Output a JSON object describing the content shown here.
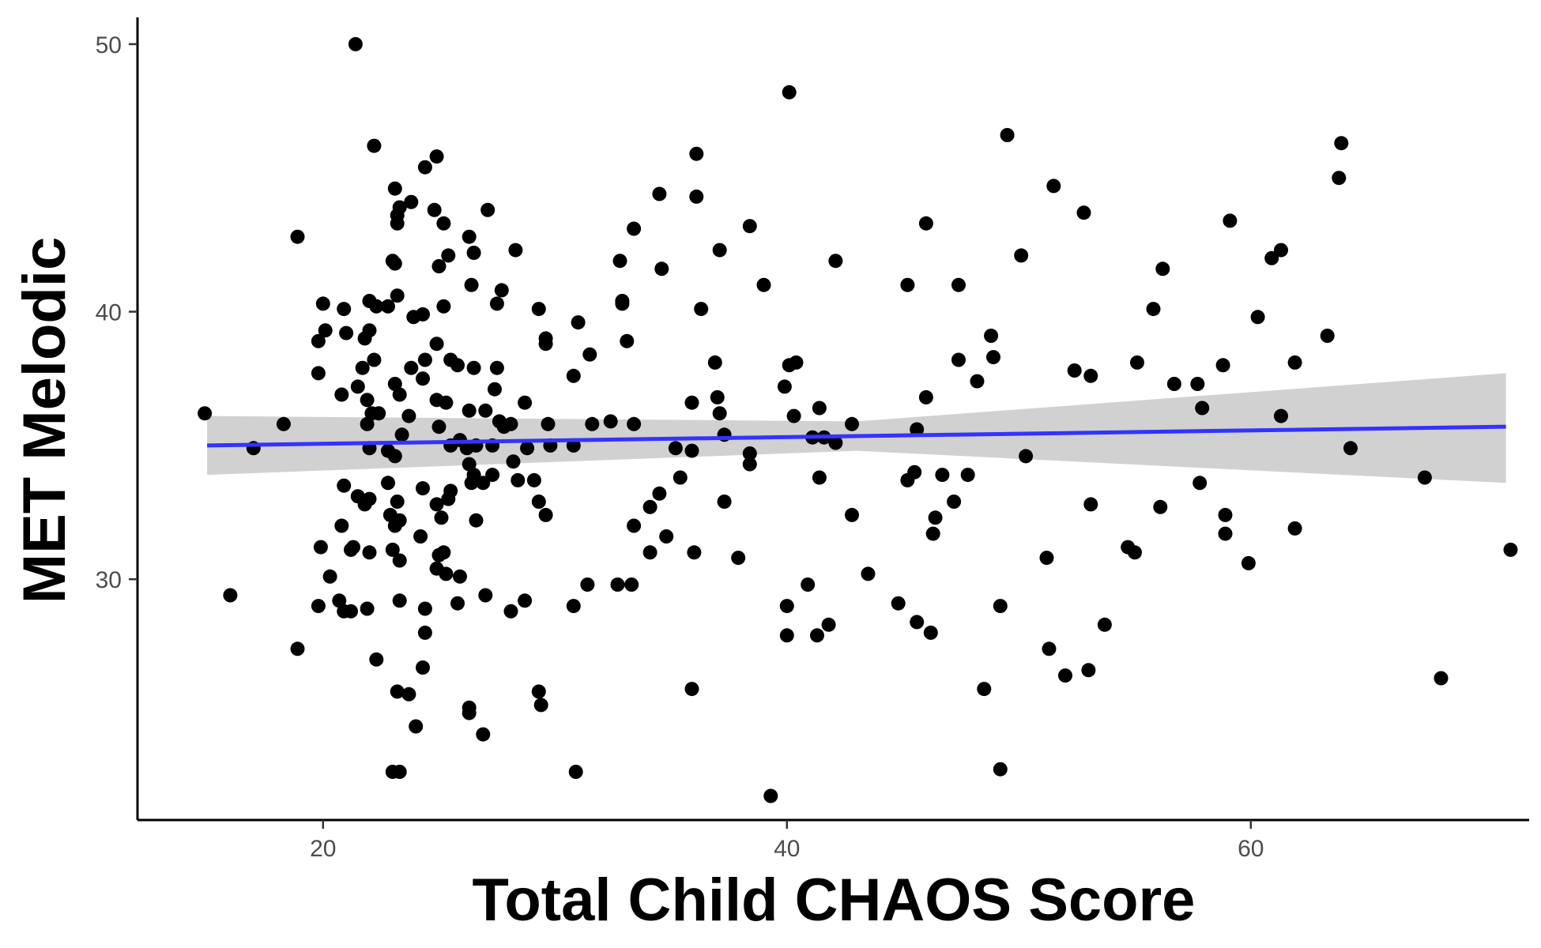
{
  "chart_data": {
    "type": "scatter",
    "title": "",
    "xlabel": "Total Child CHAOS Score",
    "ylabel": "MET Melodic",
    "xlim": [
      12,
      72
    ],
    "ylim": [
      21,
      51
    ],
    "x_ticks": [
      20,
      40,
      60
    ],
    "y_ticks": [
      30,
      40,
      50
    ],
    "grid": false,
    "legend": "none",
    "colors": {
      "points": "#000000",
      "trend_line": "#3333ff",
      "confidence_band": "#cccccc",
      "axis": "#000000",
      "tick_label": "#4d4d4d"
    },
    "trend_line": {
      "x": [
        15,
        71
      ],
      "y": [
        35.0,
        35.7
      ]
    },
    "confidence_band": {
      "x": [
        15,
        43,
        71
      ],
      "lower": [
        33.9,
        34.8,
        33.6
      ],
      "upper": [
        36.1,
        35.9,
        37.7
      ]
    },
    "points": [
      [
        21.4,
        50.0
      ],
      [
        22.2,
        46.2
      ],
      [
        24.9,
        45.8
      ],
      [
        24.4,
        45.4
      ],
      [
        23.1,
        44.6
      ],
      [
        23.8,
        44.1
      ],
      [
        23.3,
        43.9
      ],
      [
        23.2,
        43.6
      ],
      [
        23.2,
        43.3
      ],
      [
        24.8,
        43.8
      ],
      [
        25.2,
        43.3
      ],
      [
        27.1,
        43.8
      ],
      [
        26.3,
        42.8
      ],
      [
        26.5,
        42.2
      ],
      [
        25.4,
        42.1
      ],
      [
        25.0,
        41.7
      ],
      [
        23.0,
        41.9
      ],
      [
        23.1,
        41.8
      ],
      [
        18.9,
        42.8
      ],
      [
        28.3,
        42.3
      ],
      [
        26.4,
        41.0
      ],
      [
        27.7,
        40.8
      ],
      [
        27.5,
        40.3
      ],
      [
        25.2,
        40.2
      ],
      [
        24.3,
        39.9
      ],
      [
        23.9,
        39.8
      ],
      [
        23.2,
        40.6
      ],
      [
        22.8,
        40.2
      ],
      [
        22.0,
        40.4
      ],
      [
        22.3,
        40.2
      ],
      [
        20.0,
        40.3
      ],
      [
        20.9,
        40.1
      ],
      [
        20.1,
        39.3
      ],
      [
        21.0,
        39.2
      ],
      [
        22.0,
        39.3
      ],
      [
        21.8,
        39.0
      ],
      [
        19.8,
        38.9
      ],
      [
        24.9,
        38.8
      ],
      [
        25.5,
        38.2
      ],
      [
        24.4,
        38.2
      ],
      [
        23.8,
        37.9
      ],
      [
        22.2,
        38.2
      ],
      [
        21.7,
        37.9
      ],
      [
        19.8,
        37.7
      ],
      [
        25.8,
        38.0
      ],
      [
        26.5,
        37.9
      ],
      [
        27.5,
        37.9
      ],
      [
        24.3,
        37.5
      ],
      [
        23.1,
        37.3
      ],
      [
        21.5,
        37.2
      ],
      [
        20.8,
        36.9
      ],
      [
        21.9,
        36.7
      ],
      [
        23.3,
        36.9
      ],
      [
        24.9,
        36.7
      ],
      [
        25.3,
        36.6
      ],
      [
        26.3,
        36.3
      ],
      [
        27.0,
        36.3
      ],
      [
        27.4,
        37.1
      ],
      [
        28.7,
        36.6
      ],
      [
        23.7,
        36.1
      ],
      [
        22.4,
        36.2
      ],
      [
        21.9,
        35.8
      ],
      [
        22.1,
        36.2
      ],
      [
        27.6,
        35.9
      ],
      [
        27.8,
        35.7
      ],
      [
        28.1,
        35.8
      ],
      [
        25.0,
        35.7
      ],
      [
        23.4,
        35.4
      ],
      [
        22.0,
        34.9
      ],
      [
        22.8,
        34.8
      ],
      [
        23.1,
        34.6
      ],
      [
        25.5,
        35.0
      ],
      [
        25.9,
        35.2
      ],
      [
        26.2,
        34.9
      ],
      [
        26.6,
        35.0
      ],
      [
        27.3,
        35.0
      ],
      [
        28.8,
        34.9
      ],
      [
        29.8,
        35.0
      ],
      [
        26.3,
        34.3
      ],
      [
        26.5,
        33.9
      ],
      [
        28.2,
        34.4
      ],
      [
        26.9,
        33.6
      ],
      [
        27.3,
        33.9
      ],
      [
        28.4,
        33.7
      ],
      [
        29.1,
        33.7
      ],
      [
        26.4,
        33.6
      ],
      [
        20.9,
        33.5
      ],
      [
        21.5,
        33.1
      ],
      [
        22.0,
        33.0
      ],
      [
        21.8,
        32.8
      ],
      [
        22.8,
        33.6
      ],
      [
        23.2,
        32.9
      ],
      [
        24.3,
        33.4
      ],
      [
        25.5,
        33.3
      ],
      [
        25.4,
        33.0
      ],
      [
        24.9,
        32.8
      ],
      [
        25.1,
        32.3
      ],
      [
        26.6,
        32.2
      ],
      [
        22.9,
        32.4
      ],
      [
        23.1,
        32.0
      ],
      [
        23.3,
        32.2
      ],
      [
        24.2,
        31.6
      ],
      [
        20.8,
        32.0
      ],
      [
        19.9,
        31.2
      ],
      [
        21.2,
        31.1
      ],
      [
        21.3,
        31.2
      ],
      [
        22.0,
        31.0
      ],
      [
        23.0,
        31.1
      ],
      [
        23.3,
        30.7
      ],
      [
        25.0,
        30.9
      ],
      [
        25.2,
        31.0
      ],
      [
        24.9,
        30.4
      ],
      [
        25.3,
        30.2
      ],
      [
        25.9,
        30.1
      ],
      [
        20.3,
        30.1
      ],
      [
        16.0,
        29.4
      ],
      [
        19.8,
        29.0
      ],
      [
        20.7,
        29.2
      ],
      [
        20.9,
        28.8
      ],
      [
        21.2,
        28.8
      ],
      [
        21.9,
        28.9
      ],
      [
        23.3,
        29.2
      ],
      [
        24.4,
        28.9
      ],
      [
        25.8,
        29.1
      ],
      [
        27.0,
        29.4
      ],
      [
        28.1,
        28.8
      ],
      [
        28.7,
        29.2
      ],
      [
        24.4,
        28.0
      ],
      [
        18.9,
        27.4
      ],
      [
        22.3,
        27.0
      ],
      [
        24.3,
        26.7
      ],
      [
        23.2,
        25.8
      ],
      [
        23.7,
        25.7
      ],
      [
        26.3,
        25.2
      ],
      [
        26.3,
        25.0
      ],
      [
        26.9,
        24.2
      ],
      [
        24.0,
        24.5
      ],
      [
        23.0,
        22.8
      ],
      [
        23.3,
        22.8
      ],
      [
        14.9,
        36.2
      ],
      [
        17.0,
        34.9
      ],
      [
        18.3,
        35.8
      ],
      [
        29.3,
        40.1
      ],
      [
        29.6,
        39.0
      ],
      [
        29.6,
        38.8
      ],
      [
        31.0,
        39.6
      ],
      [
        31.5,
        38.4
      ],
      [
        30.8,
        37.6
      ],
      [
        29.7,
        35.8
      ],
      [
        30.8,
        35.0
      ],
      [
        31.6,
        35.8
      ],
      [
        32.4,
        35.9
      ],
      [
        33.4,
        35.8
      ],
      [
        29.3,
        32.9
      ],
      [
        29.6,
        32.4
      ],
      [
        30.8,
        29.0
      ],
      [
        31.4,
        29.8
      ],
      [
        32.7,
        29.8
      ],
      [
        33.3,
        29.8
      ],
      [
        29.3,
        25.8
      ],
      [
        29.4,
        25.3
      ],
      [
        30.9,
        22.8
      ],
      [
        32.9,
        40.4
      ],
      [
        32.9,
        40.3
      ],
      [
        33.1,
        38.9
      ],
      [
        32.8,
        41.9
      ],
      [
        33.4,
        43.1
      ],
      [
        34.5,
        44.4
      ],
      [
        34.6,
        41.6
      ],
      [
        33.4,
        32.0
      ],
      [
        34.1,
        32.7
      ],
      [
        34.5,
        33.2
      ],
      [
        35.4,
        33.8
      ],
      [
        34.8,
        31.6
      ],
      [
        34.1,
        31.0
      ],
      [
        35.2,
        34.9
      ],
      [
        35.9,
        34.8
      ],
      [
        35.9,
        36.6
      ],
      [
        36.0,
        31.0
      ],
      [
        36.1,
        45.9
      ],
      [
        36.1,
        44.3
      ],
      [
        36.3,
        40.1
      ],
      [
        36.9,
        38.1
      ],
      [
        37.0,
        36.8
      ],
      [
        37.1,
        36.2
      ],
      [
        37.3,
        35.4
      ],
      [
        37.1,
        42.3
      ],
      [
        37.3,
        32.9
      ],
      [
        37.9,
        30.8
      ],
      [
        38.4,
        34.7
      ],
      [
        38.4,
        34.3
      ],
      [
        38.4,
        43.2
      ],
      [
        39.0,
        41.0
      ],
      [
        35.9,
        25.9
      ],
      [
        39.9,
        37.2
      ],
      [
        40.1,
        38.0
      ],
      [
        40.4,
        38.1
      ],
      [
        40.3,
        36.1
      ],
      [
        40.1,
        48.2
      ],
      [
        41.1,
        35.3
      ],
      [
        41.4,
        36.4
      ],
      [
        41.6,
        35.3
      ],
      [
        42.1,
        35.1
      ],
      [
        41.4,
        33.8
      ],
      [
        42.8,
        35.8
      ],
      [
        42.8,
        32.4
      ],
      [
        42.1,
        41.9
      ],
      [
        40.9,
        29.8
      ],
      [
        40.0,
        29.0
      ],
      [
        40.0,
        27.9
      ],
      [
        41.3,
        27.9
      ],
      [
        41.8,
        28.3
      ],
      [
        43.5,
        30.2
      ],
      [
        44.8,
        29.1
      ],
      [
        39.3,
        21.9
      ],
      [
        45.2,
        41.0
      ],
      [
        46.0,
        43.3
      ],
      [
        46.0,
        36.8
      ],
      [
        45.6,
        35.6
      ],
      [
        45.2,
        33.7
      ],
      [
        45.5,
        34.0
      ],
      [
        46.7,
        33.9
      ],
      [
        46.4,
        32.3
      ],
      [
        46.3,
        31.7
      ],
      [
        47.2,
        32.9
      ],
      [
        47.8,
        33.9
      ],
      [
        47.4,
        41.0
      ],
      [
        47.4,
        38.2
      ],
      [
        48.2,
        37.4
      ],
      [
        48.8,
        39.1
      ],
      [
        48.9,
        38.3
      ],
      [
        45.6,
        28.4
      ],
      [
        46.2,
        28.0
      ],
      [
        48.5,
        25.9
      ],
      [
        49.2,
        29.0
      ],
      [
        49.5,
        46.6
      ],
      [
        50.1,
        42.1
      ],
      [
        50.3,
        34.6
      ],
      [
        51.5,
        44.7
      ],
      [
        52.8,
        43.7
      ],
      [
        52.4,
        37.8
      ],
      [
        53.1,
        37.6
      ],
      [
        53.1,
        32.8
      ],
      [
        53.7,
        28.3
      ],
      [
        51.2,
        30.8
      ],
      [
        51.3,
        27.4
      ],
      [
        52.0,
        26.4
      ],
      [
        53.0,
        26.6
      ],
      [
        49.2,
        22.9
      ],
      [
        54.7,
        31.2
      ],
      [
        55.0,
        31.0
      ],
      [
        55.1,
        38.1
      ],
      [
        55.8,
        40.1
      ],
      [
        56.2,
        41.6
      ],
      [
        56.7,
        37.3
      ],
      [
        56.1,
        32.7
      ],
      [
        57.7,
        37.3
      ],
      [
        57.9,
        36.4
      ],
      [
        57.8,
        33.6
      ],
      [
        58.8,
        38.0
      ],
      [
        58.9,
        32.4
      ],
      [
        58.9,
        31.7
      ],
      [
        59.1,
        43.4
      ],
      [
        59.9,
        30.6
      ],
      [
        60.3,
        39.8
      ],
      [
        60.9,
        42.0
      ],
      [
        61.3,
        42.3
      ],
      [
        61.3,
        36.1
      ],
      [
        61.9,
        38.1
      ],
      [
        61.9,
        31.9
      ],
      [
        63.3,
        39.1
      ],
      [
        63.8,
        45.0
      ],
      [
        63.9,
        46.3
      ],
      [
        64.3,
        34.9
      ],
      [
        67.5,
        33.8
      ],
      [
        68.2,
        26.3
      ],
      [
        71.2,
        31.1
      ]
    ]
  }
}
